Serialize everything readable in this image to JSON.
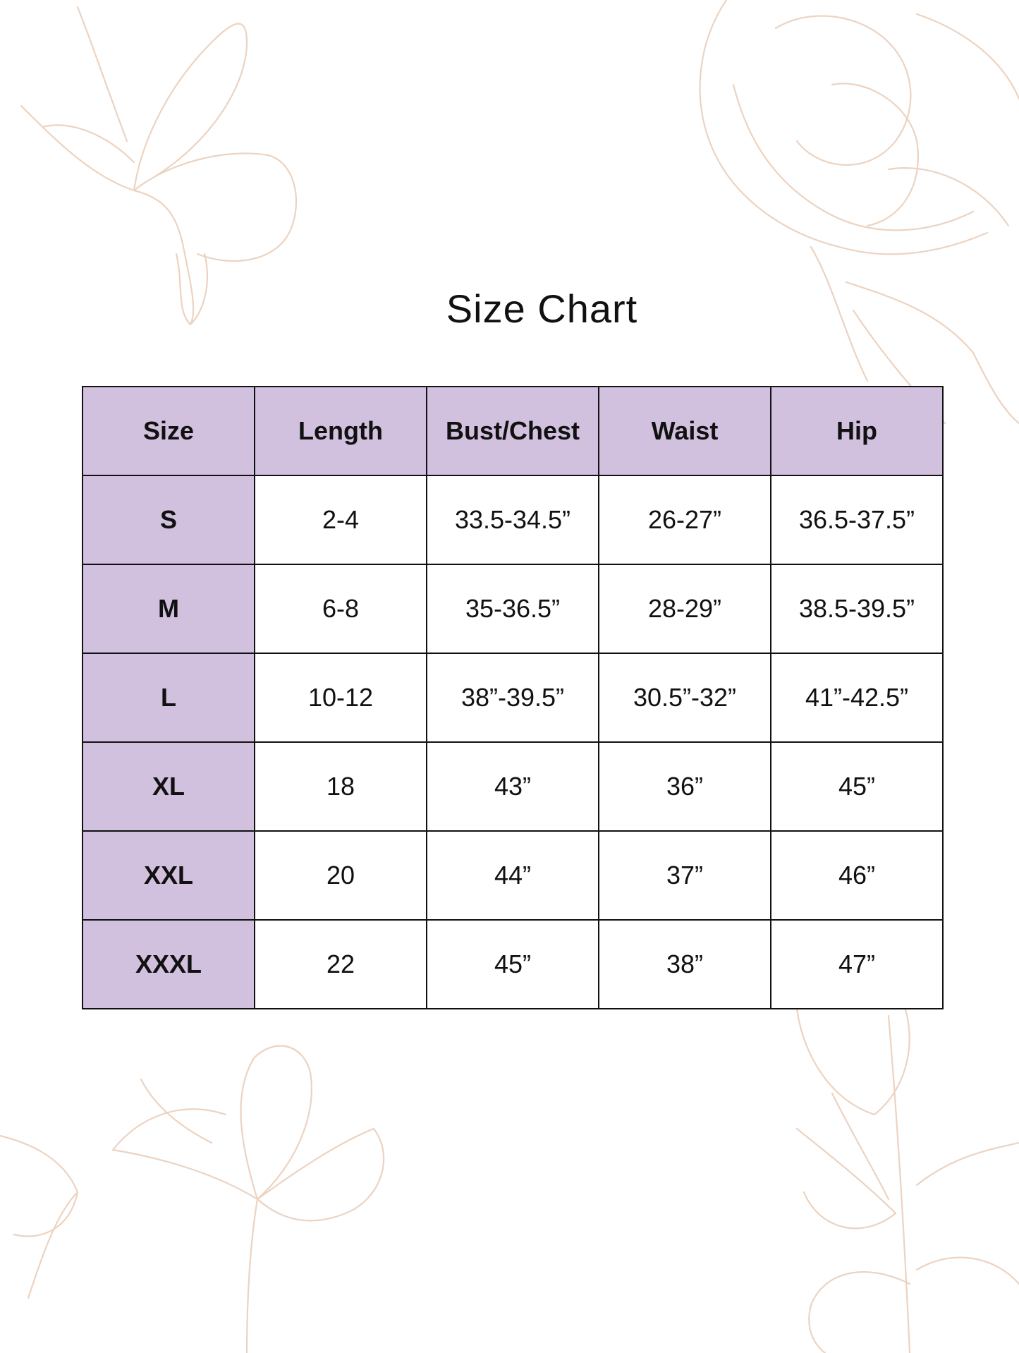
{
  "title": "Size Chart",
  "colors": {
    "header_fill": "#d1c1df",
    "border": "#111111",
    "floral_line": "#ecd3c1"
  },
  "table": {
    "headers": [
      "Size",
      "Length",
      "Bust/Chest",
      "Waist",
      "Hip"
    ],
    "rows": [
      [
        "S",
        "2-4",
        "33.5-34.5”",
        "26-27”",
        "36.5-37.5”"
      ],
      [
        "M",
        "6-8",
        "35-36.5”",
        "28-29”",
        "38.5-39.5”"
      ],
      [
        "L",
        "10-12",
        "38”-39.5”",
        "30.5”-32”",
        "41”-42.5”"
      ],
      [
        "XL",
        "18",
        "43”",
        "36”",
        "45”"
      ],
      [
        "XXL",
        "20",
        "44”",
        "37”",
        "46”"
      ],
      [
        "XXXL",
        "22",
        "45”",
        "38”",
        "47”"
      ]
    ]
  }
}
